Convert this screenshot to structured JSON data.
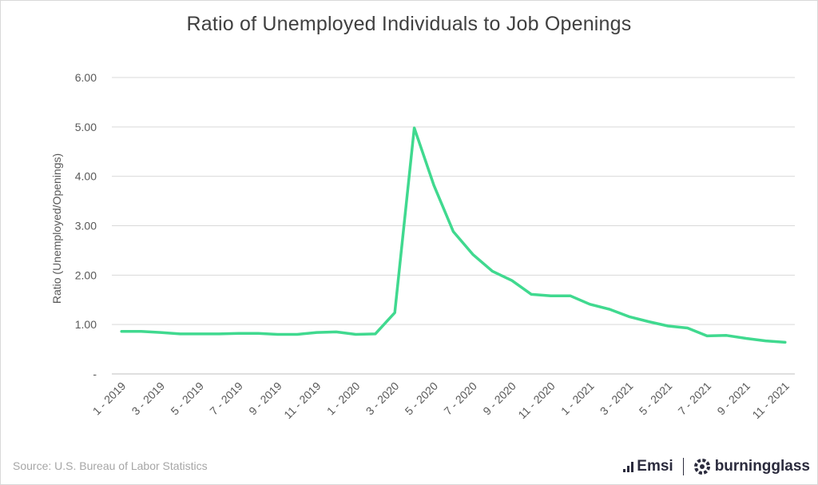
{
  "title": "Ratio of Unemployed Individuals to Job Openings",
  "source": "Source:  U.S. Bureau of Labor Statistics",
  "brands": {
    "emsi": "Emsi",
    "burningglass": "burningglass"
  },
  "colors": {
    "line": "#40d98f",
    "grid": "#d9d9d9",
    "text": "#595959"
  },
  "chart_data": {
    "type": "line",
    "title": "Ratio of Unemployed Individuals to Job Openings",
    "ylabel": "Ratio (Unemployed/Openings)",
    "xlabel": "",
    "ylim": [
      0,
      6
    ],
    "yticks": [
      "-",
      "1.00",
      "2.00",
      "3.00",
      "4.00",
      "5.00",
      "6.00"
    ],
    "grid": true,
    "x": [
      "1 - 2019",
      "2 - 2019",
      "3 - 2019",
      "4 - 2019",
      "5 - 2019",
      "6 - 2019",
      "7 - 2019",
      "8 - 2019",
      "9 - 2019",
      "10 - 2019",
      "11 - 2019",
      "12 - 2019",
      "1 - 2020",
      "2 - 2020",
      "3 - 2020",
      "4 - 2020",
      "5 - 2020",
      "6 - 2020",
      "7 - 2020",
      "8 - 2020",
      "9 - 2020",
      "10 - 2020",
      "11 - 2020",
      "12 - 2020",
      "1 - 2021",
      "2 - 2021",
      "3 - 2021",
      "4 - 2021",
      "5 - 2021",
      "6 - 2021",
      "7 - 2021",
      "8 - 2021",
      "9 - 2021",
      "10 - 2021",
      "11 - 2021"
    ],
    "xtick_labels": [
      "1 - 2019",
      "3 - 2019",
      "5 - 2019",
      "7 - 2019",
      "9 - 2019",
      "11 - 2019",
      "1 - 2020",
      "3 - 2020",
      "5 - 2020",
      "7 - 2020",
      "9 - 2020",
      "11 - 2020",
      "1 - 2021",
      "3 - 2021",
      "5 - 2021",
      "7 - 2021",
      "9 - 2021",
      "11 - 2021"
    ],
    "series": [
      {
        "values": [
          0.86,
          0.86,
          0.84,
          0.81,
          0.81,
          0.81,
          0.82,
          0.82,
          0.8,
          0.8,
          0.84,
          0.85,
          0.8,
          0.81,
          1.24,
          4.98,
          3.82,
          2.88,
          2.42,
          2.08,
          1.89,
          1.61,
          1.58,
          1.58,
          1.41,
          1.31,
          1.16,
          1.06,
          0.97,
          0.93,
          0.77,
          0.78,
          0.72,
          0.67,
          0.64
        ]
      }
    ]
  }
}
